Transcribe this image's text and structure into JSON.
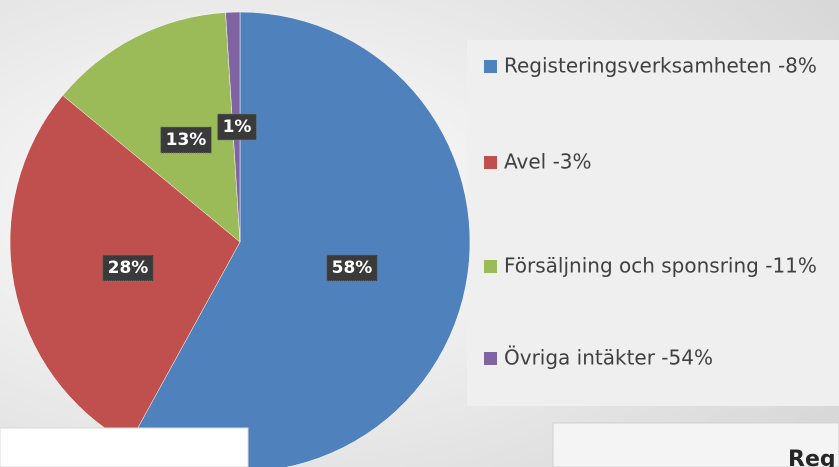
{
  "chart_data": {
    "type": "pie",
    "categories": [
      "Registeringsverksamheten -8%",
      "Avel -3%",
      "Försäljning och sponsring -11%",
      "Övriga intäkter -54%"
    ],
    "values": [
      58,
      28,
      13,
      1
    ],
    "value_labels": [
      "58%",
      "28%",
      "13%",
      "1%"
    ],
    "colors": [
      "#4f81bd",
      "#c0504d",
      "#9bbb59",
      "#8064a2"
    ],
    "legend": "right"
  },
  "footer_text": "Reg"
}
